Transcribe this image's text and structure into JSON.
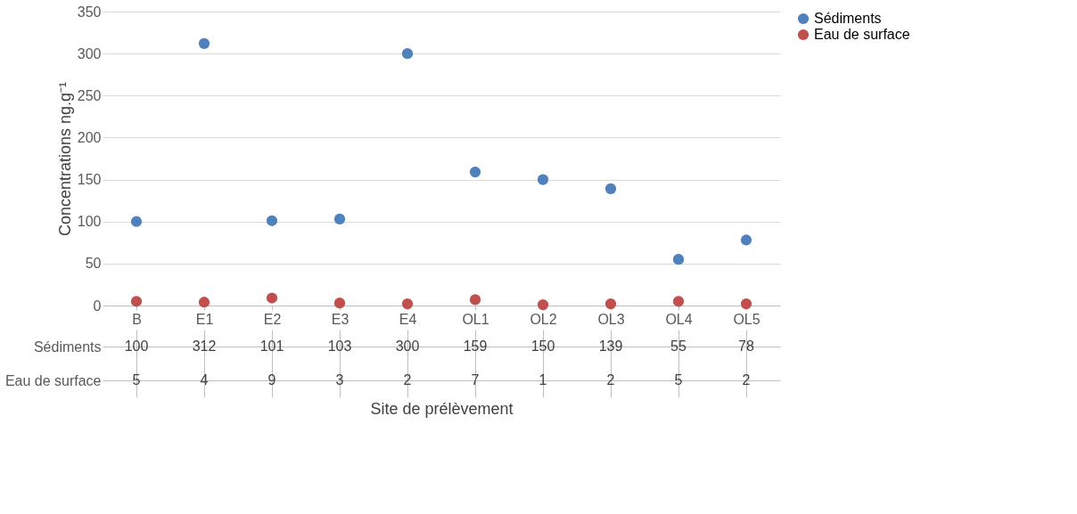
{
  "chart_data": {
    "type": "scatter",
    "xlabel": "Site de prélèvement",
    "ylabel": "Concentrations ng.g⁻¹",
    "categories": [
      "B",
      "E1",
      "E2",
      "E3",
      "E4",
      "OL1",
      "OL2",
      "OL3",
      "OL4",
      "OL5"
    ],
    "series": [
      {
        "name": "Sédiments",
        "color": "#4f81bd",
        "values": [
          100,
          312,
          101,
          103,
          300,
          159,
          150,
          139,
          55,
          78
        ]
      },
      {
        "name": "Eau de surface",
        "color": "#c0504d",
        "values": [
          5,
          4,
          9,
          3,
          2,
          7,
          1,
          2,
          5,
          2
        ]
      }
    ],
    "ylim": [
      0,
      350
    ],
    "yticks": [
      0,
      50,
      100,
      150,
      200,
      250,
      300,
      350
    ],
    "grid": "y",
    "legend": "right",
    "marker": "circle",
    "data_labels": true
  }
}
